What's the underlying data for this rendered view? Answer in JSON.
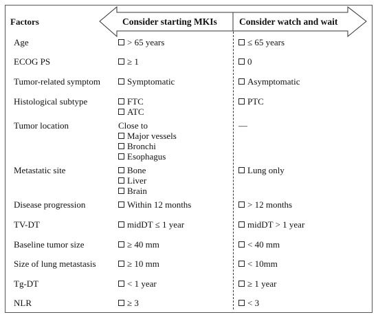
{
  "headers": {
    "factors": "Factors",
    "mki": "Consider starting MKIs",
    "watch": "Consider watch and wait"
  },
  "rows": [
    {
      "factor": "Age",
      "mki": [
        "> 65 years"
      ],
      "watch": [
        "≤ 65 years"
      ]
    },
    {
      "factor": "ECOG PS",
      "mki": [
        "≥ 1"
      ],
      "watch": [
        "0"
      ]
    },
    {
      "factor": "Tumor-related symptom",
      "mki": [
        "Symptomatic"
      ],
      "watch": [
        "Asymptomatic"
      ]
    },
    {
      "factor": "Histological subtype",
      "mki": [
        "FTC",
        "ATC"
      ],
      "watch": [
        "PTC"
      ]
    },
    {
      "factor": "Tumor location",
      "mki_intro": "Close to",
      "mki": [
        "Major vessels",
        "Bronchi",
        "Esophagus"
      ],
      "watch_text": "—"
    },
    {
      "factor": "Metastatic site",
      "mki": [
        "Bone",
        "Liver",
        "Brain"
      ],
      "watch": [
        "Lung only"
      ]
    },
    {
      "factor": "Disease progression",
      "mki": [
        "Within 12 months"
      ],
      "watch": [
        "> 12 months"
      ]
    },
    {
      "factor": "TV-DT",
      "mki": [
        "midDT ≤ 1 year"
      ],
      "watch": [
        "midDT > 1 year"
      ]
    },
    {
      "factor": "Baseline tumor size",
      "mki": [
        "≥ 40 mm"
      ],
      "watch": [
        "< 40 mm"
      ]
    },
    {
      "factor": "Size of lung metastasis",
      "mki": [
        "≥ 10 mm"
      ],
      "watch": [
        "< 10mm"
      ]
    },
    {
      "factor": "Tg-DT",
      "mki": [
        "< 1 year"
      ],
      "watch": [
        "≥ 1 year"
      ]
    },
    {
      "factor": "NLR",
      "mki": [
        "≥ 3"
      ],
      "watch": [
        "< 3"
      ]
    }
  ]
}
